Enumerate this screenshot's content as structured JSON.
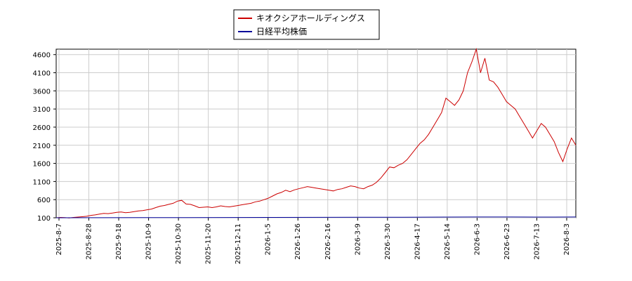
{
  "chart_data": {
    "type": "line",
    "title": "",
    "xlabel": "",
    "ylabel": "",
    "ylim": [
      100,
      4750
    ],
    "yticks": [
      100,
      600,
      1100,
      1600,
      2100,
      2600,
      3100,
      3600,
      4100,
      4600
    ],
    "xticks": [
      "2025-8-7",
      "2025-8-28",
      "2025-9-18",
      "2025-10-9",
      "2025-10-30",
      "2025-11-20",
      "2025-12-11",
      "2026-1-5",
      "2026-1-26",
      "2026-2-16",
      "2026-3-9",
      "2026-3-30",
      "2026-4-17",
      "2026-5-14",
      "2026-6-3",
      "2026-6-23",
      "2026-7-13",
      "2026-8-3"
    ],
    "grid": true,
    "legend_position": "top-center",
    "series": [
      {
        "name": "キオクシアホールディングス",
        "color": "#cc0000",
        "points": [
          [
            0,
            100
          ],
          [
            1,
            110
          ],
          [
            2,
            105
          ],
          [
            3,
            95
          ],
          [
            4,
            110
          ],
          [
            5,
            120
          ],
          [
            6,
            130
          ],
          [
            7,
            140
          ],
          [
            8,
            165
          ],
          [
            9,
            180
          ],
          [
            10,
            200
          ],
          [
            11,
            220
          ],
          [
            12,
            215
          ],
          [
            13,
            230
          ],
          [
            14,
            250
          ],
          [
            15,
            260
          ],
          [
            16,
            240
          ],
          [
            17,
            250
          ],
          [
            18,
            270
          ],
          [
            19,
            290
          ],
          [
            20,
            300
          ],
          [
            21,
            320
          ],
          [
            22,
            340
          ],
          [
            23,
            380
          ],
          [
            24,
            420
          ],
          [
            25,
            440
          ],
          [
            26,
            470
          ],
          [
            27,
            500
          ],
          [
            28,
            560
          ],
          [
            29,
            580
          ],
          [
            30,
            480
          ],
          [
            31,
            470
          ],
          [
            32,
            430
          ],
          [
            33,
            380
          ],
          [
            34,
            390
          ],
          [
            35,
            400
          ],
          [
            36,
            380
          ],
          [
            37,
            400
          ],
          [
            38,
            430
          ],
          [
            39,
            410
          ],
          [
            40,
            400
          ],
          [
            41,
            420
          ],
          [
            42,
            440
          ],
          [
            43,
            460
          ],
          [
            44,
            480
          ],
          [
            45,
            500
          ],
          [
            46,
            540
          ],
          [
            47,
            560
          ],
          [
            48,
            600
          ],
          [
            49,
            640
          ],
          [
            50,
            700
          ],
          [
            51,
            760
          ],
          [
            52,
            800
          ],
          [
            53,
            860
          ],
          [
            54,
            820
          ],
          [
            55,
            870
          ],
          [
            56,
            900
          ],
          [
            57,
            930
          ],
          [
            58,
            960
          ],
          [
            59,
            940
          ],
          [
            60,
            920
          ],
          [
            61,
            900
          ],
          [
            62,
            880
          ],
          [
            63,
            860
          ],
          [
            64,
            840
          ],
          [
            65,
            880
          ],
          [
            66,
            900
          ],
          [
            67,
            940
          ],
          [
            68,
            980
          ],
          [
            69,
            960
          ],
          [
            70,
            920
          ],
          [
            71,
            900
          ],
          [
            72,
            960
          ],
          [
            73,
            1000
          ],
          [
            74,
            1080
          ],
          [
            75,
            1200
          ],
          [
            76,
            1350
          ],
          [
            77,
            1500
          ],
          [
            78,
            1480
          ],
          [
            79,
            1550
          ],
          [
            80,
            1600
          ],
          [
            81,
            1700
          ],
          [
            82,
            1850
          ],
          [
            83,
            2000
          ],
          [
            84,
            2150
          ],
          [
            85,
            2250
          ],
          [
            86,
            2400
          ],
          [
            87,
            2600
          ],
          [
            88,
            2800
          ],
          [
            89,
            3000
          ],
          [
            90,
            3400
          ],
          [
            91,
            3300
          ],
          [
            92,
            3200
          ],
          [
            93,
            3350
          ],
          [
            94,
            3600
          ],
          [
            95,
            4100
          ],
          [
            96,
            4400
          ],
          [
            97,
            4750
          ],
          [
            98,
            4100
          ],
          [
            99,
            4500
          ],
          [
            100,
            3900
          ],
          [
            101,
            3850
          ],
          [
            102,
            3700
          ],
          [
            103,
            3500
          ],
          [
            104,
            3300
          ],
          [
            105,
            3200
          ],
          [
            106,
            3100
          ],
          [
            107,
            2900
          ],
          [
            108,
            2700
          ],
          [
            109,
            2500
          ],
          [
            110,
            2300
          ],
          [
            111,
            2500
          ],
          [
            112,
            2700
          ],
          [
            113,
            2600
          ],
          [
            114,
            2400
          ],
          [
            115,
            2200
          ],
          [
            116,
            1900
          ],
          [
            117,
            1650
          ],
          [
            118,
            2000
          ],
          [
            119,
            2300
          ],
          [
            120,
            2100
          ]
        ]
      },
      {
        "name": "日経平均株価",
        "color": "#000099",
        "points": [
          [
            0,
            100
          ],
          [
            10,
            102
          ],
          [
            20,
            104
          ],
          [
            30,
            106
          ],
          [
            40,
            108
          ],
          [
            50,
            110
          ],
          [
            60,
            112
          ],
          [
            70,
            114
          ],
          [
            80,
            116
          ],
          [
            90,
            120
          ],
          [
            97,
            122
          ],
          [
            105,
            121
          ],
          [
            115,
            120
          ],
          [
            120,
            121
          ]
        ]
      }
    ]
  }
}
